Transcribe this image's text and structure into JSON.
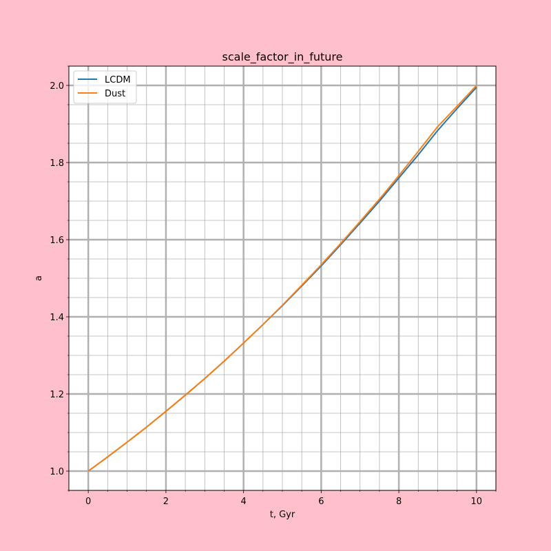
{
  "figure": {
    "background": "#ffc0cb"
  },
  "chart_data": {
    "type": "line",
    "title": "scale_factor_in_future",
    "xlabel": "t, Gyr",
    "ylabel": "a",
    "xlim": [
      -0.5,
      10.5
    ],
    "ylim": [
      0.95,
      2.05
    ],
    "x_major_ticks": [
      0,
      2,
      4,
      6,
      8,
      10
    ],
    "x_tick_labels": [
      "0",
      "2",
      "4",
      "6",
      "8",
      "10"
    ],
    "x_minor_step": 0.5,
    "y_major_ticks": [
      1.0,
      1.2,
      1.4,
      1.6,
      1.8,
      2.0
    ],
    "y_tick_labels": [
      "1.0",
      "1.2",
      "1.4",
      "1.6",
      "1.8",
      "2.0"
    ],
    "y_minor_step": 0.05,
    "grid": true,
    "legend": {
      "placement": "top-left"
    },
    "series": [
      {
        "name": "LCDM",
        "color": "#1f77b4",
        "x": [
          0,
          0.5,
          1,
          1.5,
          2,
          2.5,
          3,
          3.5,
          4,
          4.5,
          5,
          5.5,
          6,
          6.5,
          7,
          7.5,
          8,
          8.5,
          9,
          9.5,
          10
        ],
        "y": [
          1.0,
          1.037,
          1.075,
          1.114,
          1.155,
          1.197,
          1.24,
          1.285,
          1.332,
          1.38,
          1.429,
          1.48,
          1.532,
          1.587,
          1.643,
          1.7,
          1.76,
          1.82,
          1.883,
          1.94,
          1.995
        ]
      },
      {
        "name": "Dust",
        "color": "#ff7f0e",
        "x": [
          0,
          0.5,
          1,
          1.5,
          2,
          2.5,
          3,
          3.5,
          4,
          4.5,
          5,
          5.5,
          6,
          6.5,
          7,
          7.5,
          8,
          8.5,
          9,
          9.5,
          10
        ],
        "y": [
          1.0,
          1.037,
          1.075,
          1.114,
          1.155,
          1.197,
          1.24,
          1.285,
          1.332,
          1.38,
          1.43,
          1.482,
          1.535,
          1.59,
          1.647,
          1.705,
          1.766,
          1.829,
          1.893,
          1.946,
          2.0
        ]
      }
    ]
  }
}
